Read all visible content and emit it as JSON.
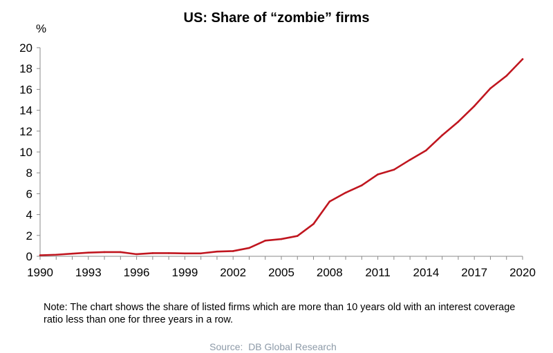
{
  "chart_data": {
    "type": "line",
    "title": "US: Share of “zombie” firms",
    "y_unit_label": "%",
    "xlabel": "",
    "ylabel": "",
    "xlim": [
      1990,
      2020
    ],
    "ylim": [
      0,
      20
    ],
    "y_ticks": [
      "0",
      "2",
      "4",
      "6",
      "8",
      "10",
      "12",
      "14",
      "16",
      "18",
      "20"
    ],
    "x_ticks": [
      "1990",
      "1993",
      "1996",
      "1999",
      "2002",
      "2005",
      "2008",
      "2011",
      "2014",
      "2017",
      "2020"
    ],
    "grid": false,
    "legend": "none",
    "line_color": "#c0161f",
    "x": [
      1990,
      1991,
      1992,
      1993,
      1994,
      1995,
      1996,
      1997,
      1998,
      1999,
      2000,
      2001,
      2002,
      2003,
      2004,
      2005,
      2006,
      2007,
      2008,
      2009,
      2010,
      2011,
      2012,
      2013,
      2014,
      2015,
      2016,
      2017,
      2018,
      2019,
      2020
    ],
    "series": [
      {
        "values": [
          0.1,
          0.15,
          0.25,
          0.35,
          0.4,
          0.4,
          0.2,
          0.3,
          0.3,
          0.28,
          0.28,
          0.45,
          0.5,
          0.8,
          1.5,
          1.65,
          1.95,
          3.1,
          5.25,
          6.1,
          6.8,
          7.85,
          8.3,
          9.25,
          10.15,
          11.6,
          12.9,
          14.4,
          16.1,
          17.3,
          18.9
        ]
      }
    ]
  },
  "note": "Note: The chart shows the share of listed firms which are more than 10 years old with an interest coverage ratio less than one for three years in a row.",
  "source": "Source:  DB Global Research"
}
